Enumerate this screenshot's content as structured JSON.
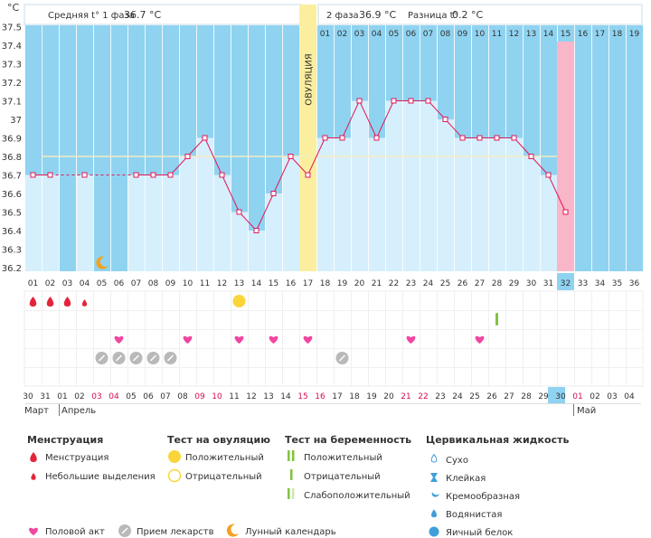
{
  "header": {
    "unit": "°C",
    "phase1_label": "Средняя t° 1 фаза",
    "phase1_value": "36.7 °C",
    "phase2_label": "2 фаза",
    "phase2_value": "36.9 °C",
    "diff_label": "Разница t°",
    "diff_value": "0.2 °C"
  },
  "ovulation_label": "ОВУЛЯЦИЯ",
  "chart_data": {
    "type": "line",
    "title": "",
    "ylabel": "°C",
    "ylim": [
      36.2,
      37.6
    ],
    "yticks": [
      37.5,
      37.4,
      37.3,
      37.2,
      37.1,
      37.0,
      36.9,
      36.8,
      36.7,
      36.6,
      36.5,
      36.4,
      36.3,
      36.2
    ],
    "ytick_labels": [
      "37.5",
      "37.4",
      "37.3",
      "37.2",
      "37.1",
      "37",
      "36.9",
      "36.8",
      "36.7",
      "36.6",
      "36.5",
      "36.4",
      "36.3",
      "36.2"
    ],
    "coverline": 36.8,
    "cycle_days": [
      "01",
      "02",
      "03",
      "04",
      "05",
      "06",
      "07",
      "08",
      "09",
      "10",
      "11",
      "12",
      "13",
      "14",
      "15",
      "16",
      "17",
      "18",
      "19",
      "20",
      "21",
      "22",
      "23",
      "24",
      "25",
      "26",
      "27",
      "28",
      "29",
      "30",
      "31",
      "32",
      "33",
      "34",
      "35",
      "36"
    ],
    "temperatures": [
      36.7,
      36.7,
      null,
      36.7,
      null,
      null,
      36.7,
      36.7,
      36.7,
      36.8,
      36.9,
      36.7,
      36.5,
      36.4,
      36.6,
      36.8,
      36.7,
      36.9,
      36.9,
      37.1,
      36.9,
      37.1,
      37.1,
      37.1,
      37.0,
      36.9,
      36.9,
      36.9,
      36.9,
      36.8,
      36.7,
      36.5,
      null,
      null,
      null,
      null
    ],
    "dpo_labels": [
      "01",
      "02",
      "03",
      "04",
      "05",
      "06",
      "07",
      "08",
      "09",
      "10",
      "11",
      "12",
      "13",
      "14",
      "15",
      "16",
      "17",
      "18",
      "19"
    ],
    "ovulation_day": 17,
    "current_day": 32,
    "calendar_dates": [
      "30",
      "31",
      "01",
      "02",
      "03",
      "04",
      "05",
      "06",
      "07",
      "08",
      "09",
      "10",
      "11",
      "12",
      "13",
      "14",
      "15",
      "16",
      "17",
      "18",
      "19",
      "20",
      "21",
      "22",
      "23",
      "24",
      "25",
      "26",
      "27",
      "28",
      "29",
      "30",
      "01",
      "02",
      "03",
      "04"
    ],
    "weekend_dates": [
      false,
      false,
      false,
      false,
      true,
      true,
      false,
      false,
      false,
      false,
      true,
      true,
      false,
      false,
      false,
      false,
      true,
      true,
      false,
      false,
      false,
      false,
      true,
      true,
      false,
      false,
      false,
      false,
      false,
      false,
      false,
      false,
      true,
      false,
      false,
      false
    ],
    "months": [
      "Март",
      "Апрель",
      "Май"
    ],
    "menstruation_days": [
      1,
      2,
      3
    ],
    "spotting_days": [
      4
    ],
    "moon_days": [
      5
    ],
    "ovulation_test_positive_days": [
      13
    ],
    "pregnancy_test_days": [
      28
    ],
    "intercourse_days": [
      6,
      10,
      13,
      15,
      17,
      23,
      27
    ],
    "medication_days": [
      5,
      6,
      7,
      8,
      9,
      19
    ]
  },
  "legend": {
    "menstruation": {
      "title": "Менструация",
      "items": [
        "Менструация",
        "Небольшие выделения"
      ]
    },
    "ovulation_test": {
      "title": "Тест на овуляцию",
      "items": [
        "Положительный",
        "Отрицательный"
      ]
    },
    "pregnancy_test": {
      "title": "Тест на беременность",
      "items": [
        "Положительный",
        "Отрицательный",
        "Слабоположительный"
      ]
    },
    "cervical_fluid": {
      "title": "Цервикальная жидкость",
      "items": [
        "Сухо",
        "Клейкая",
        "Кремообразная",
        "Водянистая",
        "Яичный белок"
      ]
    },
    "bottom": [
      "Половой акт",
      "Прием лекарств",
      "Лунный календарь"
    ]
  },
  "colors": {
    "sky": "#8fd3f1",
    "bar": "#d6effc",
    "line": "#e0195a",
    "ovulation": "#fbef9f",
    "current": "#f9b6c9",
    "heart": "#f0479f",
    "blood": "#e3253b",
    "pill": "#b9b9b9",
    "moon": "#f4a21f",
    "positive": "#f9d53a",
    "pregnancy": "#82c341",
    "weekend": "#d60d4c"
  }
}
